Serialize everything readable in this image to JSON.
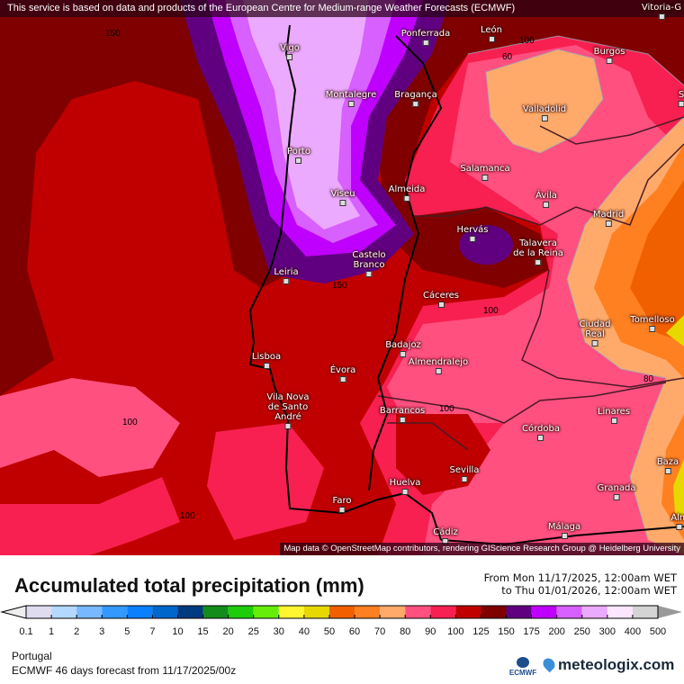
{
  "banner": "This service is based on data and products of the European Centre for Medium-range Weather Forecasts (ECMWF)",
  "attribution": "Map data © OpenStreetMap contributors, rendering GIScience Research Group @ Heidelberg University",
  "title": "Accumulated total precipitation (mm)",
  "period": {
    "from": "From Mon 11/17/2025, 12:00am WET",
    "to": "to Thu 01/01/2026, 12:00am WET"
  },
  "region": "Portugal",
  "forecast": "ECMWF 46 days forecast from  11/17/2025/00z",
  "ecmwf_logo": "ECMWF",
  "brand": "meteologix.com",
  "legend": {
    "ticks": [
      "0.1",
      "1",
      "2",
      "3",
      "5",
      "7",
      "10",
      "15",
      "20",
      "25",
      "30",
      "40",
      "50",
      "60",
      "70",
      "80",
      "90",
      "100",
      "125",
      "150",
      "175",
      "200",
      "250",
      "300",
      "400",
      "500"
    ],
    "colors": [
      "#e0dcf0",
      "#b4d8ff",
      "#78b8ff",
      "#3399ff",
      "#0a80ff",
      "#0066cc",
      "#003a80",
      "#138c1c",
      "#1ecd0a",
      "#66ee0a",
      "#fff530",
      "#e6d800",
      "#f06000",
      "#ff8020",
      "#ffaa6a",
      "#ff5080",
      "#f82050",
      "#c00000",
      "#800000",
      "#600080",
      "#c000ff",
      "#d860ff",
      "#ecaaff",
      "#fbe5ff",
      "#d4d4d4"
    ],
    "under_color": "#eeeeee",
    "over_color": "#999999"
  },
  "contour_labels": [
    "150",
    "100",
    "60",
    "150",
    "100",
    "100",
    "100",
    "100",
    "80"
  ],
  "cities": [
    "Vigo",
    "Ponferrada",
    "León",
    "Burgos",
    "Vitoria-G",
    "Montalegre",
    "Bragança",
    "Valladolid",
    "Porto",
    "Salamanca",
    "Viseu",
    "Almeida",
    "Ávila",
    "Madrid",
    "Hervás",
    "Talavera\nde la Reina",
    "Castelo\nBranco",
    "Leiria",
    "Cáceres",
    "Ciudad\nReal",
    "Tomelloso",
    "Lisboa",
    "Badajoz",
    "Évora",
    "Almendralejo",
    "Vila Nova\nde Santo\nAndré",
    "Barrancos",
    "Linares",
    "Córdoba",
    "Sevilla",
    "Huelva",
    "Baza",
    "Granada",
    "Faro",
    "Málaga",
    "Cádiz",
    "S",
    "Alm"
  ]
}
